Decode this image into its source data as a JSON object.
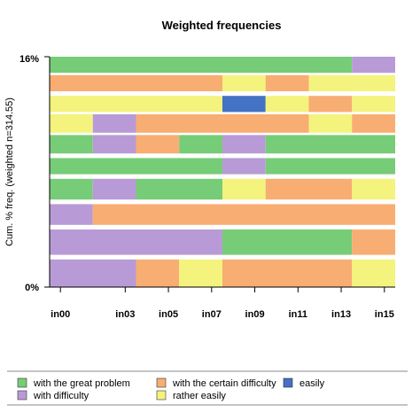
{
  "chart_data": {
    "type": "bar",
    "orientation": "horizontal-stacked",
    "title": "Weighted frequencies",
    "ylabel": "Cum. % freq. (weighted n=314.55)",
    "y_ticks": [
      "16%",
      "0%"
    ],
    "x_ticks": [
      "in00",
      "in03",
      "in05",
      "in07",
      "in09",
      "in11",
      "in13",
      "in15"
    ],
    "x_tick_positions": [
      0,
      3,
      5,
      7,
      9,
      11,
      13,
      15
    ],
    "x_range": [
      -0.5,
      15.5
    ],
    "legend_position": "bottom",
    "categories_colors": {
      "great_problem": "#77cc77",
      "certain_difficulty": "#f8ad72",
      "easily": "#4472c4",
      "difficulty": "#b89bd6",
      "rather_easily": "#f3f37e"
    },
    "legend": [
      {
        "key": "great_problem",
        "label": "with the great problem"
      },
      {
        "key": "certain_difficulty",
        "label": "with the certain difficulty"
      },
      {
        "key": "easily",
        "label": "easily"
      },
      {
        "key": "difficulty",
        "label": "with difficulty"
      },
      {
        "key": "rather_easily",
        "label": "rather easily"
      }
    ],
    "rows": [
      {
        "band": [
          0.93,
          1.0
        ],
        "segments": [
          {
            "from": -0.5,
            "to": 13.5,
            "cat": "great_problem"
          },
          {
            "from": 13.5,
            "to": 15.5,
            "cat": "difficulty"
          }
        ]
      },
      {
        "band": [
          0.85,
          0.92
        ],
        "segments": [
          {
            "from": -0.5,
            "to": 7.5,
            "cat": "certain_difficulty"
          },
          {
            "from": 7.5,
            "to": 9.5,
            "cat": "rather_easily"
          },
          {
            "from": 9.5,
            "to": 11.5,
            "cat": "certain_difficulty"
          },
          {
            "from": 11.5,
            "to": 15.5,
            "cat": "rather_easily"
          }
        ]
      },
      {
        "band": [
          0.76,
          0.83
        ],
        "segments": [
          {
            "from": -0.5,
            "to": 7.5,
            "cat": "rather_easily"
          },
          {
            "from": 7.5,
            "to": 9.5,
            "cat": "easily"
          },
          {
            "from": 9.5,
            "to": 11.5,
            "cat": "rather_easily"
          },
          {
            "from": 11.5,
            "to": 13.5,
            "cat": "certain_difficulty"
          },
          {
            "from": 13.5,
            "to": 15.5,
            "cat": "rather_easily"
          }
        ]
      },
      {
        "band": [
          0.67,
          0.75
        ],
        "segments": [
          {
            "from": -0.5,
            "to": 1.5,
            "cat": "rather_easily"
          },
          {
            "from": 1.5,
            "to": 3.5,
            "cat": "difficulty"
          },
          {
            "from": 3.5,
            "to": 11.5,
            "cat": "certain_difficulty"
          },
          {
            "from": 11.5,
            "to": 13.5,
            "cat": "rather_easily"
          },
          {
            "from": 13.5,
            "to": 15.5,
            "cat": "certain_difficulty"
          }
        ]
      },
      {
        "band": [
          0.58,
          0.66
        ],
        "segments": [
          {
            "from": -0.5,
            "to": 1.5,
            "cat": "great_problem"
          },
          {
            "from": 1.5,
            "to": 3.5,
            "cat": "difficulty"
          },
          {
            "from": 3.5,
            "to": 5.5,
            "cat": "certain_difficulty"
          },
          {
            "from": 5.5,
            "to": 7.5,
            "cat": "great_problem"
          },
          {
            "from": 7.5,
            "to": 9.5,
            "cat": "difficulty"
          },
          {
            "from": 9.5,
            "to": 15.5,
            "cat": "great_problem"
          }
        ]
      },
      {
        "band": [
          0.49,
          0.56
        ],
        "segments": [
          {
            "from": -0.5,
            "to": 7.5,
            "cat": "great_problem"
          },
          {
            "from": 7.5,
            "to": 9.5,
            "cat": "difficulty"
          },
          {
            "from": 9.5,
            "to": 15.5,
            "cat": "great_problem"
          }
        ]
      },
      {
        "band": [
          0.38,
          0.47
        ],
        "segments": [
          {
            "from": -0.5,
            "to": 1.5,
            "cat": "great_problem"
          },
          {
            "from": 1.5,
            "to": 3.5,
            "cat": "difficulty"
          },
          {
            "from": 3.5,
            "to": 7.5,
            "cat": "great_problem"
          },
          {
            "from": 7.5,
            "to": 9.5,
            "cat": "rather_easily"
          },
          {
            "from": 9.5,
            "to": 13.5,
            "cat": "certain_difficulty"
          },
          {
            "from": 13.5,
            "to": 15.5,
            "cat": "rather_easily"
          }
        ]
      },
      {
        "band": [
          0.27,
          0.36
        ],
        "segments": [
          {
            "from": -0.5,
            "to": 1.5,
            "cat": "difficulty"
          },
          {
            "from": 1.5,
            "to": 15.5,
            "cat": "certain_difficulty"
          }
        ]
      },
      {
        "band": [
          0.14,
          0.25
        ],
        "segments": [
          {
            "from": -0.5,
            "to": 7.5,
            "cat": "difficulty"
          },
          {
            "from": 7.5,
            "to": 13.5,
            "cat": "great_problem"
          },
          {
            "from": 13.5,
            "to": 15.5,
            "cat": "certain_difficulty"
          }
        ]
      },
      {
        "band": [
          0.0,
          0.12
        ],
        "segments": [
          {
            "from": -0.5,
            "to": 3.5,
            "cat": "difficulty"
          },
          {
            "from": 3.5,
            "to": 5.5,
            "cat": "certain_difficulty"
          },
          {
            "from": 5.5,
            "to": 7.5,
            "cat": "rather_easily"
          },
          {
            "from": 7.5,
            "to": 13.5,
            "cat": "certain_difficulty"
          },
          {
            "from": 13.5,
            "to": 15.5,
            "cat": "rather_easily"
          }
        ]
      }
    ]
  }
}
